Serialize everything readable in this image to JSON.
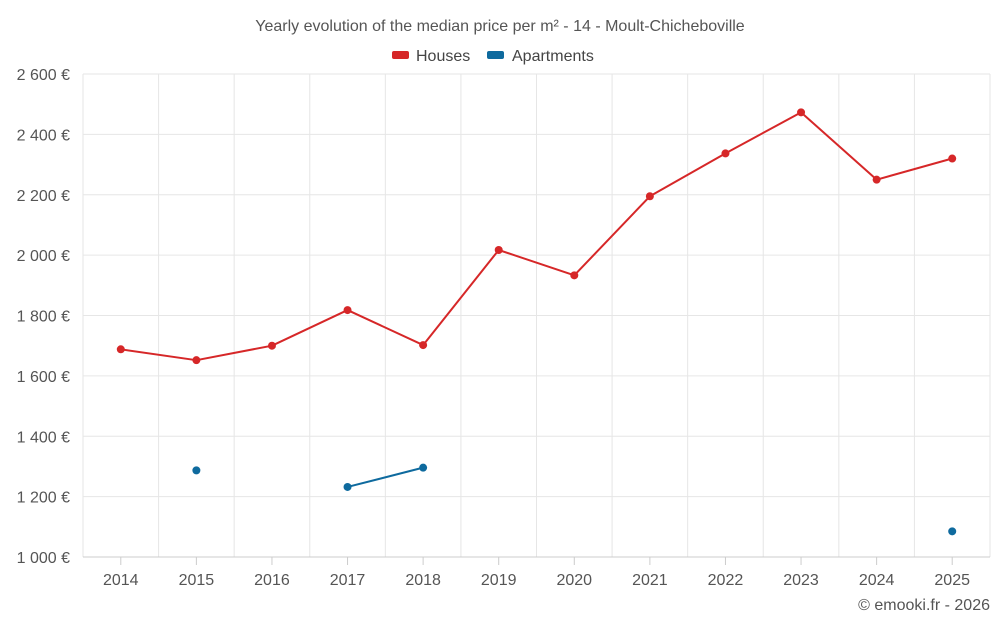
{
  "chart_data": {
    "type": "line",
    "title": "Yearly evolution of the median price per m² - 14 - Moult-Chicheboville",
    "categories": [
      "2014",
      "2015",
      "2016",
      "2017",
      "2018",
      "2019",
      "2020",
      "2021",
      "2022",
      "2023",
      "2024",
      "2025"
    ],
    "ylim": [
      1000,
      2600
    ],
    "yticks": [
      1000,
      1200,
      1400,
      1600,
      1800,
      2000,
      2200,
      2400,
      2600
    ],
    "ytick_labels": [
      "1 000 €",
      "1 200 €",
      "1 400 €",
      "1 600 €",
      "1 800 €",
      "2 000 €",
      "2 200 €",
      "2 400 €",
      "2 600 €"
    ],
    "grid": true,
    "legend_position": "top-center",
    "series": [
      {
        "name": "Houses",
        "color": "#d62728",
        "values": [
          1688,
          1652,
          1700,
          1818,
          1702,
          2017,
          1933,
          2195,
          2337,
          2473,
          2250,
          2320
        ]
      },
      {
        "name": "Apartments",
        "color": "#0e6a9e",
        "values": [
          null,
          1287,
          null,
          1232,
          1296,
          null,
          null,
          null,
          null,
          null,
          null,
          1085
        ]
      }
    ],
    "credit": "© emooki.fr - 2026"
  }
}
